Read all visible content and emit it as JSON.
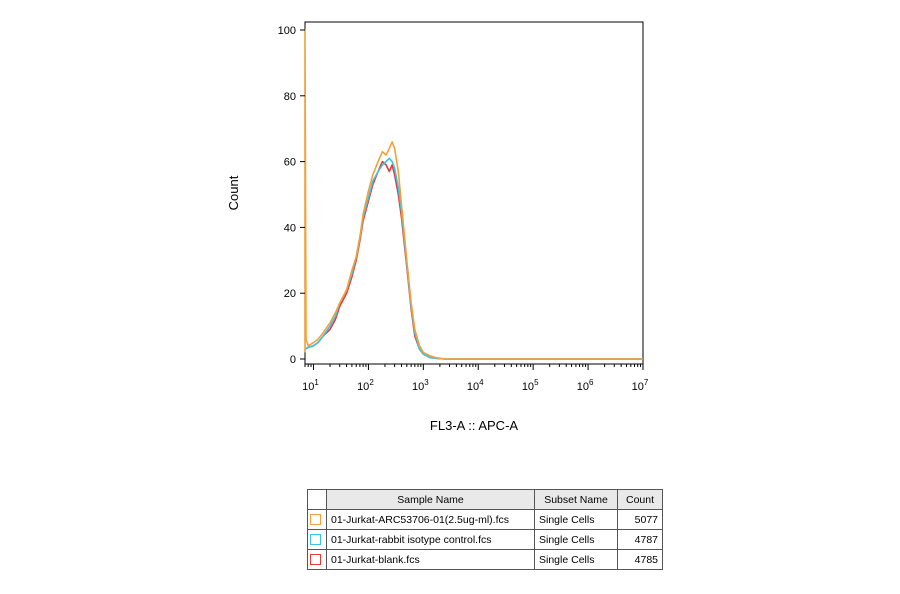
{
  "chart_data": {
    "type": "line",
    "title": "",
    "xlabel": "FL3-A :: APC-A",
    "ylabel": "Count",
    "x_scale": "log",
    "xlim": [
      7,
      10000000
    ],
    "ylim": [
      0,
      100
    ],
    "y_ticks": [
      0,
      20,
      40,
      60,
      80,
      100
    ],
    "x_ticks": [
      {
        "value": 10,
        "base": "10",
        "exp": "1"
      },
      {
        "value": 100,
        "base": "10",
        "exp": "2"
      },
      {
        "value": 1000,
        "base": "10",
        "exp": "3"
      },
      {
        "value": 10000,
        "base": "10",
        "exp": "4"
      },
      {
        "value": 100000,
        "base": "10",
        "exp": "5"
      },
      {
        "value": 1000000,
        "base": "10",
        "exp": "6"
      },
      {
        "value": 10000000,
        "base": "10",
        "exp": "7"
      }
    ],
    "grid": false,
    "series": [
      {
        "name": "01-Jurkat-ARC53706-01(2.5ug-ml).fcs",
        "color": "#f0a23a",
        "x": [
          7,
          7,
          7.3,
          8,
          10,
          12,
          15,
          20,
          25,
          30,
          40,
          50,
          60,
          70,
          80,
          100,
          120,
          150,
          180,
          210,
          240,
          270,
          300,
          350,
          400,
          500,
          600,
          700,
          850,
          1000,
          1300,
          1700,
          2500,
          4000,
          10000,
          100000,
          1000000,
          10000000
        ],
        "y": [
          2,
          100,
          6,
          4,
          5,
          6,
          8,
          11,
          14,
          17,
          21,
          27,
          31,
          37,
          44,
          51,
          56,
          60,
          63,
          62,
          64,
          66,
          64,
          57,
          47,
          30,
          17,
          9,
          4,
          2,
          1,
          0.4,
          0,
          0,
          0,
          0,
          0,
          0
        ]
      },
      {
        "name": "01-Jurkat-rabbit isotype control.fcs",
        "color": "#3bc3e8",
        "x": [
          7,
          8,
          10,
          12,
          15,
          20,
          25,
          30,
          40,
          50,
          60,
          70,
          80,
          100,
          120,
          150,
          180,
          210,
          240,
          270,
          300,
          350,
          400,
          500,
          600,
          700,
          850,
          1000,
          1300,
          1700,
          2500,
          4000,
          10000,
          100000,
          1000000,
          10000000
        ],
        "y": [
          3,
          3.5,
          4,
          5,
          7,
          10,
          13,
          17,
          21,
          26,
          31,
          37,
          43,
          49,
          54,
          57,
          59,
          60,
          61,
          60,
          58,
          52,
          45,
          29,
          16,
          8,
          3,
          1.5,
          0.5,
          0.2,
          0,
          0,
          0,
          0,
          0,
          0
        ]
      },
      {
        "name": "01-Jurkat-blank.fcs",
        "color": "#e03c3c",
        "x": [
          7,
          8,
          10,
          12,
          15,
          20,
          25,
          30,
          40,
          50,
          60,
          70,
          80,
          100,
          120,
          150,
          180,
          210,
          240,
          270,
          300,
          350,
          400,
          500,
          600,
          700,
          850,
          1000,
          1300,
          1700,
          2500,
          4000,
          10000,
          100000,
          1000000,
          10000000
        ],
        "y": [
          3,
          3.5,
          4,
          5,
          7,
          9,
          12,
          16,
          20,
          25,
          30,
          36,
          42,
          48,
          53,
          57,
          60,
          59,
          57,
          59,
          56,
          50,
          43,
          28,
          15,
          7,
          3,
          1.5,
          0.5,
          0.2,
          0,
          0,
          0,
          0,
          0,
          0
        ]
      }
    ]
  },
  "legend_table": {
    "headers": {
      "sample": "Sample Name",
      "subset": "Subset Name",
      "count": "Count"
    },
    "rows": [
      {
        "sample": "01-Jurkat-ARC53706-01(2.5ug-ml).fcs",
        "subset": "Single Cells",
        "count": "5077",
        "color": "#f0a23a"
      },
      {
        "sample": "01-Jurkat-rabbit isotype control.fcs",
        "subset": "Single Cells",
        "count": "4787",
        "color": "#3bc3e8"
      },
      {
        "sample": "01-Jurkat-blank.fcs",
        "subset": "Single Cells",
        "count": "4785",
        "color": "#e03c3c"
      }
    ]
  }
}
